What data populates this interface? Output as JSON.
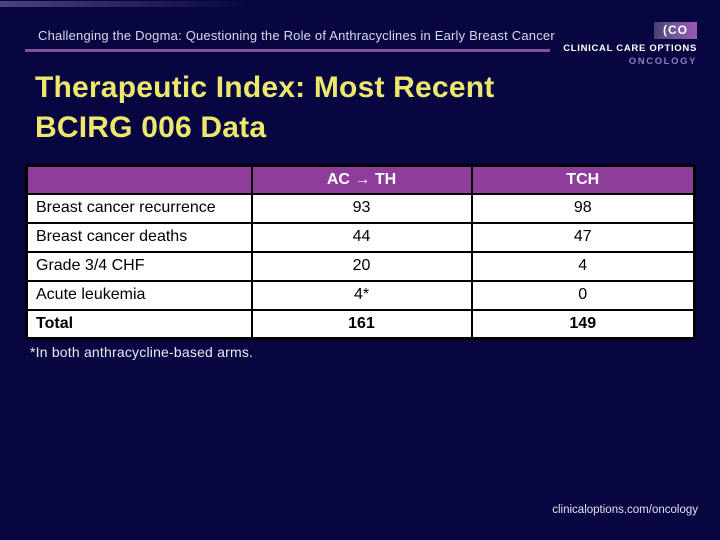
{
  "slide": {
    "header": "Challenging the Dogma: Questioning the Role of Anthracyclines in Early Breast Cancer",
    "title_line1": "Therapeutic Index: Most Recent",
    "title_line2": "BCIRG 006 Data",
    "footnote": "*In both anthracycline-based arms.",
    "footer_url": "clinicaloptions.com/oncology"
  },
  "logo": {
    "mark": "(CO",
    "line1": "CLINICAL CARE OPTIONS",
    "line2": "ONCOLOGY"
  },
  "table": {
    "columns": [
      "",
      "AC → TH",
      "TCH"
    ],
    "rows": [
      {
        "label": "Breast cancer recurrence",
        "ac_th": "93",
        "tch": "98"
      },
      {
        "label": "Breast cancer deaths",
        "ac_th": "44",
        "tch": "47"
      },
      {
        "label": "Grade 3/4 CHF",
        "ac_th": "20",
        "tch": "4"
      },
      {
        "label": "Acute leukemia",
        "ac_th": "4*",
        "tch": "0"
      },
      {
        "label": "Total",
        "ac_th": "161",
        "tch": "149"
      }
    ]
  },
  "colors": {
    "background": "#070640",
    "title": "#eee76d",
    "header_rule": "#7a559e",
    "table_header_bg": "#8e3d9a",
    "table_header_text": "#ffffff",
    "cell_bg": "#ffffff",
    "cell_text": "#000000",
    "logo_purple": "#9a58b4",
    "oncology_text": "#8d7cc2"
  }
}
